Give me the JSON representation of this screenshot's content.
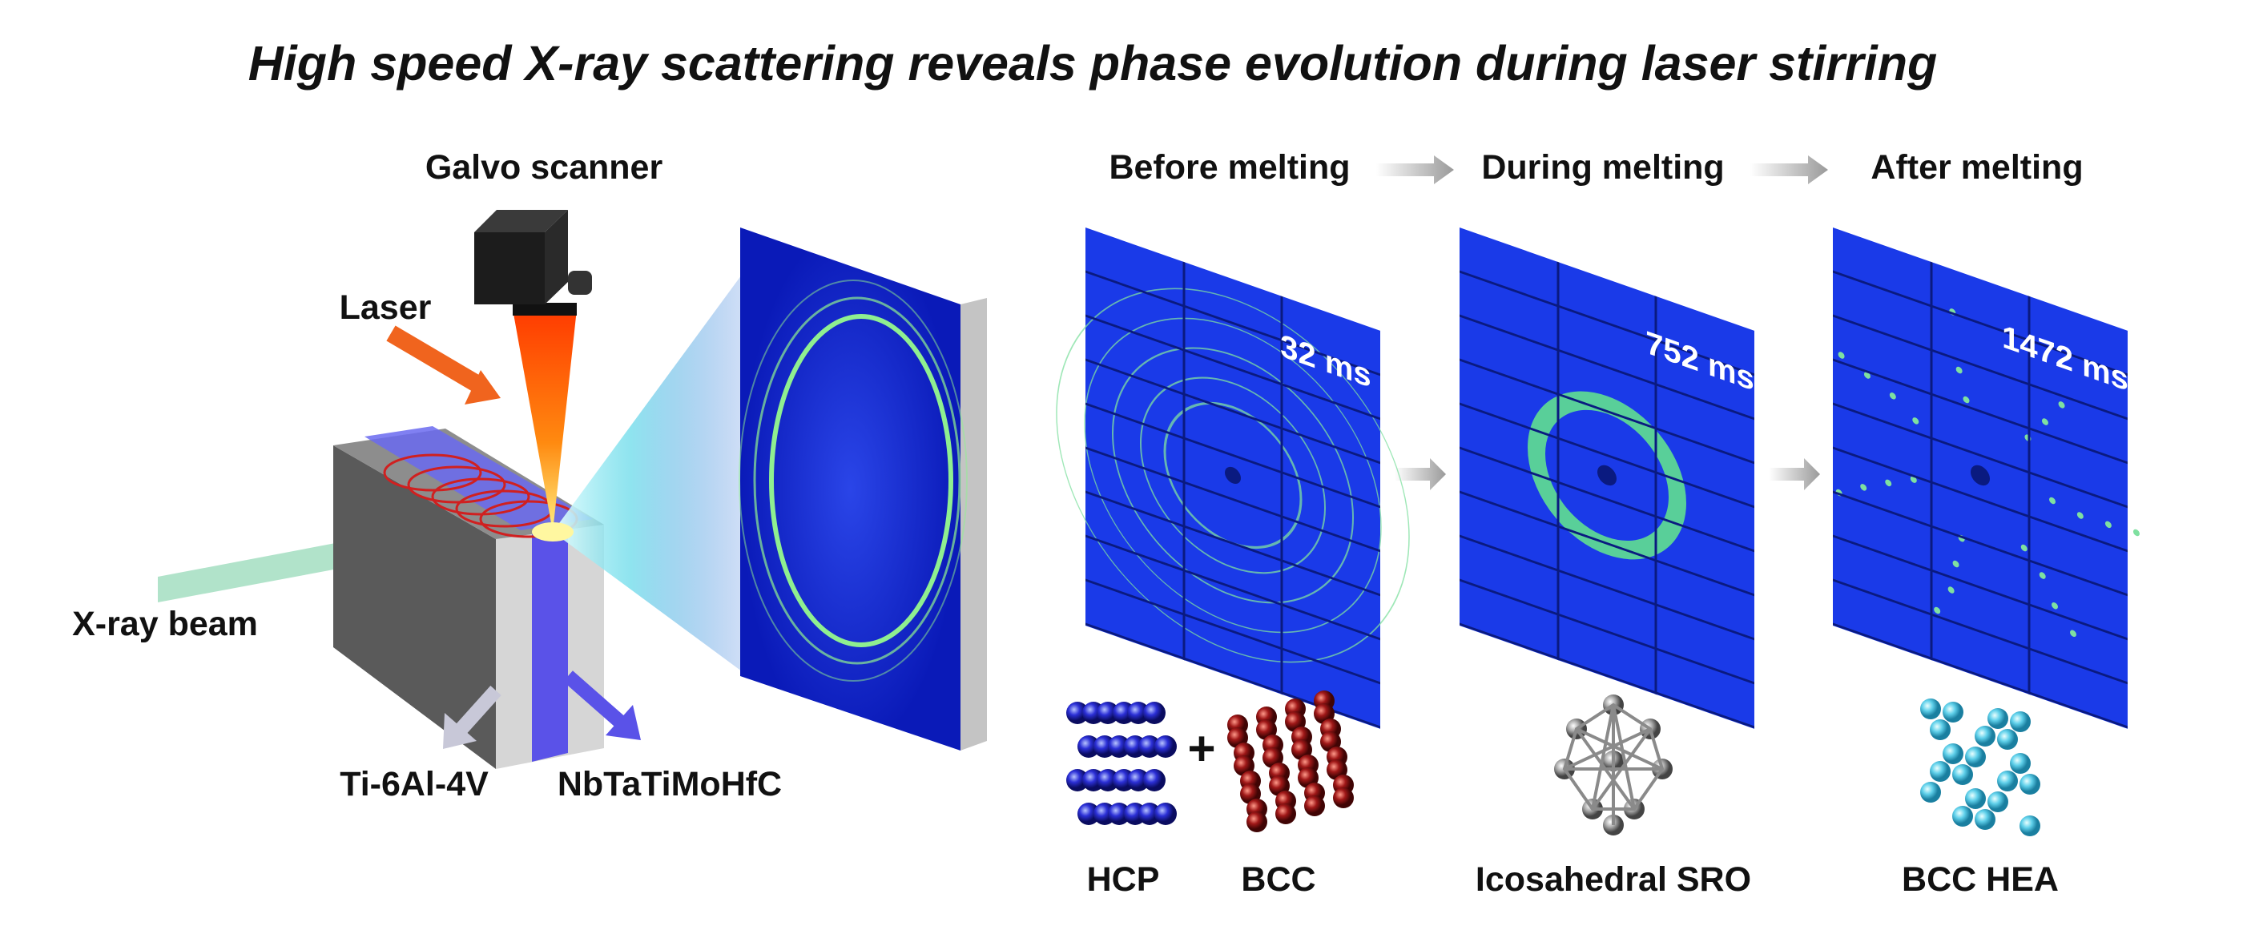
{
  "title": "High speed X-ray scattering reveals phase evolution during laser stirring",
  "setup": {
    "galvo_scanner": "Galvo scanner",
    "laser": "Laser",
    "xray_beam": "X-ray beam",
    "substrate": "Ti-6Al-4V",
    "coating": "NbTaTiMoHfC"
  },
  "stages": [
    {
      "header": "Before melting",
      "time": "32 ms",
      "phases": [
        "HCP",
        "BCC"
      ],
      "joiner": "+"
    },
    {
      "header": "During melting",
      "time": "752 ms",
      "phases": [
        "Icosahedral SRO"
      ]
    },
    {
      "header": "After melting",
      "time": "1472 ms",
      "phases": [
        "BCC HEA"
      ]
    }
  ]
}
